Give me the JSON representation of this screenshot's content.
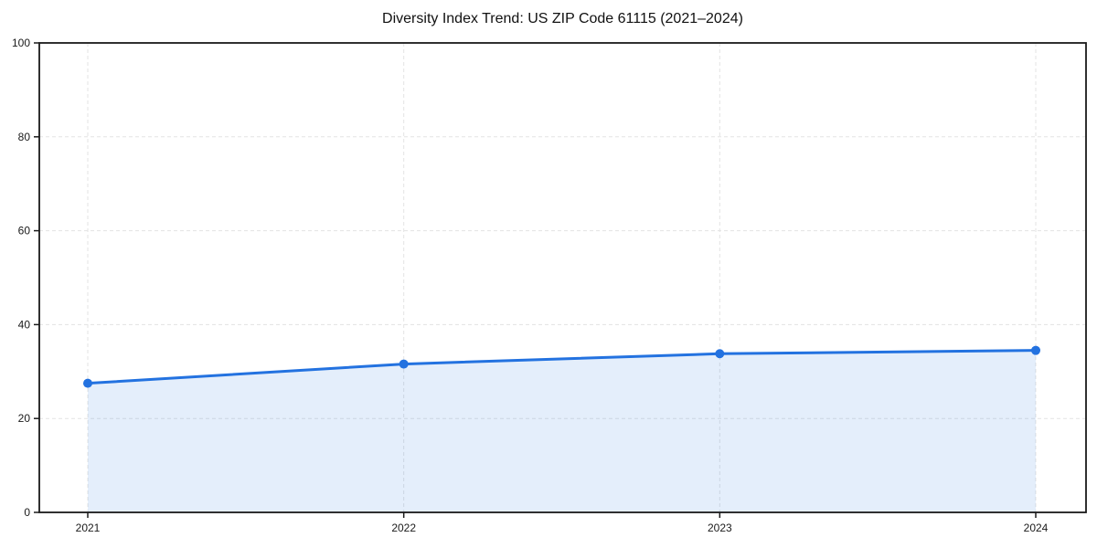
{
  "page": {
    "background": "#ffffff"
  },
  "chart_data": {
    "type": "line",
    "title": "Diversity Index Trend: US ZIP Code 61115 (2021–2024)",
    "x": [
      2021,
      2022,
      2023,
      2024
    ],
    "x_tick_labels": [
      "2021",
      "2022",
      "2023",
      "2024"
    ],
    "series": [
      {
        "name": "Diversity Index",
        "values": [
          27.5,
          31.6,
          33.8,
          34.5
        ],
        "color": "#2372e0",
        "fill_color": "rgba(34, 114, 224, 0.12)",
        "marker": "circle"
      }
    ],
    "xlabel": "",
    "ylabel": "",
    "ylim": [
      0,
      100
    ],
    "y_ticks": [
      0,
      20,
      40,
      60,
      80,
      100
    ],
    "grid": "dashed",
    "grid_color": "#e3e3e3",
    "area_fill": true,
    "legend": "none",
    "axis_color": "#1a1a1a",
    "tick_label_color": "#1a1a1a"
  }
}
